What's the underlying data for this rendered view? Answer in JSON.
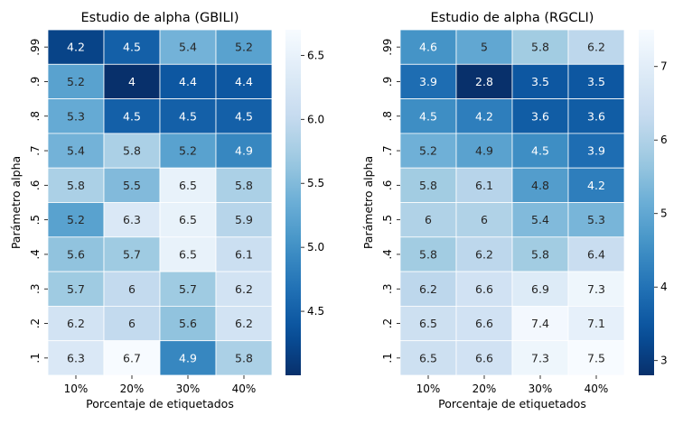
{
  "chart_data": [
    {
      "type": "heatmap",
      "title": "Estudio de alpha (GBILI)",
      "xlabel": "Porcentaje de etiquetados",
      "ylabel": "Parámetro alpha",
      "x": [
        "10%",
        "20%",
        "30%",
        "40%"
      ],
      "y": [
        ".99",
        ".9",
        ".8",
        ".7",
        ".6",
        ".5",
        ".4",
        ".3",
        ".2",
        ".1"
      ],
      "values": [
        [
          4.2,
          4.5,
          5.4,
          5.2
        ],
        [
          5.2,
          4.0,
          4.4,
          4.4
        ],
        [
          5.3,
          4.5,
          4.5,
          4.5
        ],
        [
          5.4,
          5.8,
          5.2,
          4.9
        ],
        [
          5.8,
          5.5,
          6.5,
          5.8
        ],
        [
          5.2,
          6.3,
          6.5,
          5.9
        ],
        [
          5.6,
          5.7,
          6.5,
          6.1
        ],
        [
          5.7,
          6.0,
          5.7,
          6.2
        ],
        [
          6.2,
          6.0,
          5.6,
          6.2
        ],
        [
          6.3,
          6.7,
          4.9,
          5.8
        ]
      ],
      "labels": [
        [
          "4.2",
          "4.5",
          "5.4",
          "5.2"
        ],
        [
          "5.2",
          "4",
          "4.4",
          "4.4"
        ],
        [
          "5.3",
          "4.5",
          "4.5",
          "4.5"
        ],
        [
          "5.4",
          "5.8",
          "5.2",
          "4.9"
        ],
        [
          "5.8",
          "5.5",
          "6.5",
          "5.8"
        ],
        [
          "5.2",
          "6.3",
          "6.5",
          "5.9"
        ],
        [
          "5.6",
          "5.7",
          "6.5",
          "6.1"
        ],
        [
          "5.7",
          "6",
          "5.7",
          "6.2"
        ],
        [
          "6.2",
          "6",
          "5.6",
          "6.2"
        ],
        [
          "6.3",
          "6.7",
          "4.9",
          "5.8"
        ]
      ],
      "colorbar": {
        "min": 4.0,
        "max": 6.7,
        "ticks": [
          "4.5",
          "5.0",
          "5.5",
          "6.0",
          "6.5"
        ],
        "tick_values": [
          4.5,
          5.0,
          5.5,
          6.0,
          6.5
        ]
      },
      "colormap": "Blues_r"
    },
    {
      "type": "heatmap",
      "title": "Estudio de alpha (RGCLI)",
      "xlabel": "Porcentaje de etiquetados",
      "ylabel": "Parámetro alpha",
      "x": [
        "10%",
        "20%",
        "30%",
        "40%"
      ],
      "y": [
        ".99",
        ".9",
        ".8",
        ".7",
        ".6",
        ".5",
        ".4",
        ".3",
        ".2",
        ".1"
      ],
      "values": [
        [
          4.6,
          5.0,
          5.8,
          6.2
        ],
        [
          3.9,
          2.8,
          3.5,
          3.5
        ],
        [
          4.5,
          4.2,
          3.6,
          3.6
        ],
        [
          5.2,
          4.9,
          4.5,
          3.9
        ],
        [
          5.8,
          6.1,
          4.8,
          4.2
        ],
        [
          6.0,
          6.0,
          5.4,
          5.3
        ],
        [
          5.8,
          6.2,
          5.8,
          6.4
        ],
        [
          6.2,
          6.6,
          6.9,
          7.3
        ],
        [
          6.5,
          6.6,
          7.4,
          7.1
        ],
        [
          6.5,
          6.6,
          7.3,
          7.5
        ]
      ],
      "labels": [
        [
          "4.6",
          "5",
          "5.8",
          "6.2"
        ],
        [
          "3.9",
          "2.8",
          "3.5",
          "3.5"
        ],
        [
          "4.5",
          "4.2",
          "3.6",
          "3.6"
        ],
        [
          "5.2",
          "4.9",
          "4.5",
          "3.9"
        ],
        [
          "5.8",
          "6.1",
          "4.8",
          "4.2"
        ],
        [
          "6",
          "6",
          "5.4",
          "5.3"
        ],
        [
          "5.8",
          "6.2",
          "5.8",
          "6.4"
        ],
        [
          "6.2",
          "6.6",
          "6.9",
          "7.3"
        ],
        [
          "6.5",
          "6.6",
          "7.4",
          "7.1"
        ],
        [
          "6.5",
          "6.6",
          "7.3",
          "7.5"
        ]
      ],
      "colorbar": {
        "min": 2.8,
        "max": 7.5,
        "ticks": [
          "3",
          "4",
          "5",
          "6",
          "7"
        ],
        "tick_values": [
          3,
          4,
          5,
          6,
          7
        ]
      },
      "colormap": "Blues_r"
    }
  ]
}
